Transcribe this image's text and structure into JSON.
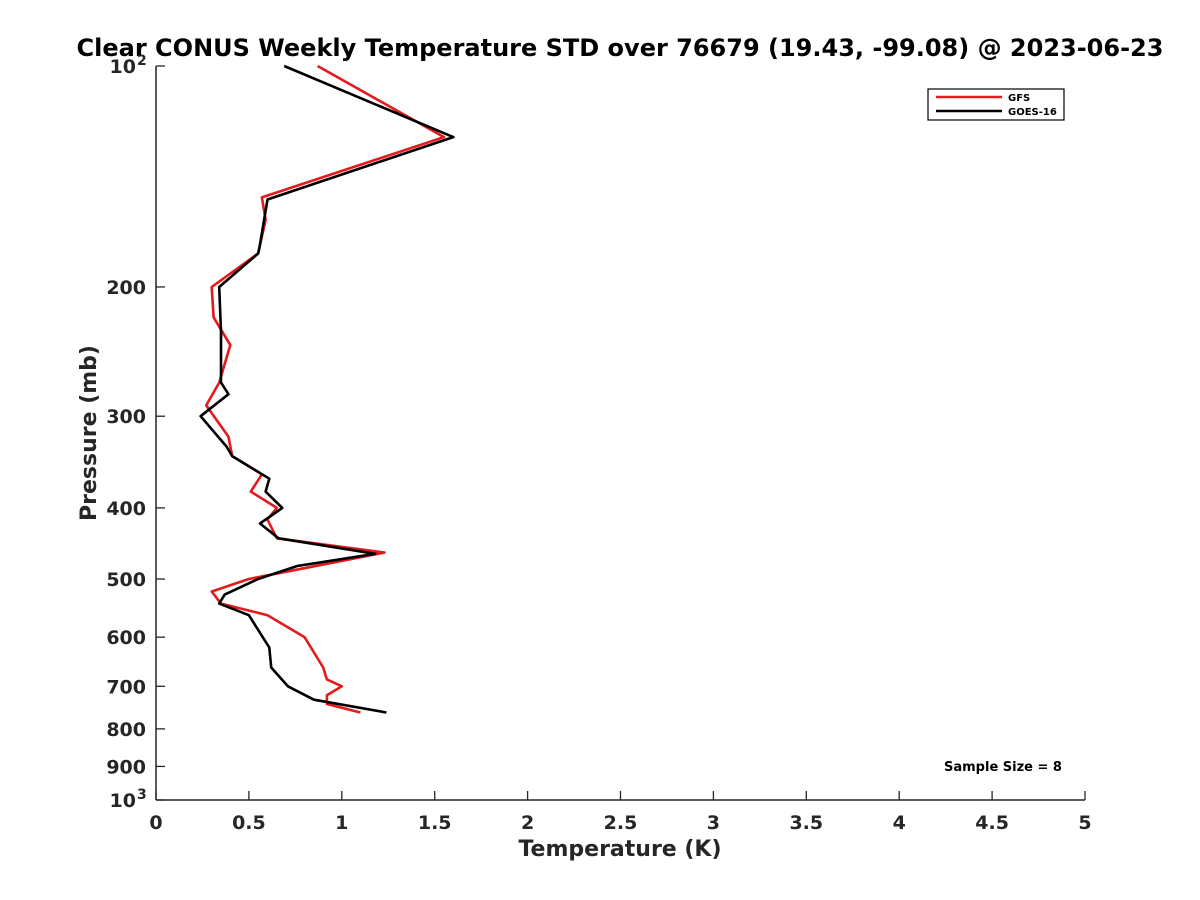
{
  "chart_data": {
    "type": "line",
    "title": "Clear CONUS Weekly Temperature STD over 76679 (19.43, -99.08) @ 2023-06-23",
    "xlabel": "Temperature (K)",
    "ylabel": "Pressure (mb)",
    "xlim": [
      0,
      5
    ],
    "ylim": [
      100,
      1000
    ],
    "y_scale": "log",
    "y_reversed": true,
    "x_ticks": [
      {
        "value": 0,
        "label": "0"
      },
      {
        "value": 0.5,
        "label": "0.5"
      },
      {
        "value": 1,
        "label": "1"
      },
      {
        "value": 1.5,
        "label": "1.5"
      },
      {
        "value": 2,
        "label": "2"
      },
      {
        "value": 2.5,
        "label": "2.5"
      },
      {
        "value": 3,
        "label": "3"
      },
      {
        "value": 3.5,
        "label": "3.5"
      },
      {
        "value": 4,
        "label": "4"
      },
      {
        "value": 4.5,
        "label": "4.5"
      },
      {
        "value": 5,
        "label": "5"
      }
    ],
    "y_ticks": [
      {
        "value": 100,
        "label": "10",
        "exponent": "2"
      },
      {
        "value": 200,
        "label": "200"
      },
      {
        "value": 300,
        "label": "300"
      },
      {
        "value": 400,
        "label": "400"
      },
      {
        "value": 500,
        "label": "500"
      },
      {
        "value": 600,
        "label": "600"
      },
      {
        "value": 700,
        "label": "700"
      },
      {
        "value": 800,
        "label": "800"
      },
      {
        "value": 900,
        "label": "900"
      },
      {
        "value": 1000,
        "label": "10",
        "exponent": "3"
      }
    ],
    "grid": false,
    "legend_position": "top-right",
    "annotation": "Sample Size = 8",
    "series": [
      {
        "name": "GFS",
        "color": "#e41a1c",
        "points": [
          {
            "x": 0.87,
            "y": 100
          },
          {
            "x": 1.55,
            "y": 125
          },
          {
            "x": 0.57,
            "y": 151
          },
          {
            "x": 0.59,
            "y": 162
          },
          {
            "x": 0.55,
            "y": 180
          },
          {
            "x": 0.3,
            "y": 200
          },
          {
            "x": 0.31,
            "y": 220
          },
          {
            "x": 0.4,
            "y": 240
          },
          {
            "x": 0.34,
            "y": 270
          },
          {
            "x": 0.27,
            "y": 290
          },
          {
            "x": 0.39,
            "y": 320
          },
          {
            "x": 0.41,
            "y": 340
          },
          {
            "x": 0.57,
            "y": 360
          },
          {
            "x": 0.51,
            "y": 380
          },
          {
            "x": 0.65,
            "y": 400
          },
          {
            "x": 0.6,
            "y": 415
          },
          {
            "x": 0.65,
            "y": 440
          },
          {
            "x": 1.23,
            "y": 460
          },
          {
            "x": 0.5,
            "y": 500
          },
          {
            "x": 0.3,
            "y": 520
          },
          {
            "x": 0.35,
            "y": 540
          },
          {
            "x": 0.6,
            "y": 560
          },
          {
            "x": 0.8,
            "y": 600
          },
          {
            "x": 0.9,
            "y": 660
          },
          {
            "x": 0.92,
            "y": 685
          },
          {
            "x": 1.0,
            "y": 700
          },
          {
            "x": 0.92,
            "y": 720
          },
          {
            "x": 0.92,
            "y": 740
          },
          {
            "x": 1.1,
            "y": 760
          }
        ]
      },
      {
        "name": "GOES-16",
        "color": "#000000",
        "points": [
          {
            "x": 0.69,
            "y": 100
          },
          {
            "x": 1.6,
            "y": 125
          },
          {
            "x": 0.6,
            "y": 152
          },
          {
            "x": 0.56,
            "y": 175
          },
          {
            "x": 0.55,
            "y": 180
          },
          {
            "x": 0.34,
            "y": 200
          },
          {
            "x": 0.35,
            "y": 230
          },
          {
            "x": 0.35,
            "y": 270
          },
          {
            "x": 0.39,
            "y": 280
          },
          {
            "x": 0.24,
            "y": 300
          },
          {
            "x": 0.38,
            "y": 330
          },
          {
            "x": 0.41,
            "y": 340
          },
          {
            "x": 0.61,
            "y": 365
          },
          {
            "x": 0.59,
            "y": 380
          },
          {
            "x": 0.68,
            "y": 400
          },
          {
            "x": 0.56,
            "y": 420
          },
          {
            "x": 0.66,
            "y": 440
          },
          {
            "x": 1.18,
            "y": 462
          },
          {
            "x": 0.76,
            "y": 480
          },
          {
            "x": 0.55,
            "y": 500
          },
          {
            "x": 0.37,
            "y": 525
          },
          {
            "x": 0.34,
            "y": 540
          },
          {
            "x": 0.5,
            "y": 560
          },
          {
            "x": 0.61,
            "y": 620
          },
          {
            "x": 0.62,
            "y": 660
          },
          {
            "x": 0.71,
            "y": 700
          },
          {
            "x": 0.85,
            "y": 730
          },
          {
            "x": 1.24,
            "y": 760
          }
        ]
      }
    ]
  }
}
